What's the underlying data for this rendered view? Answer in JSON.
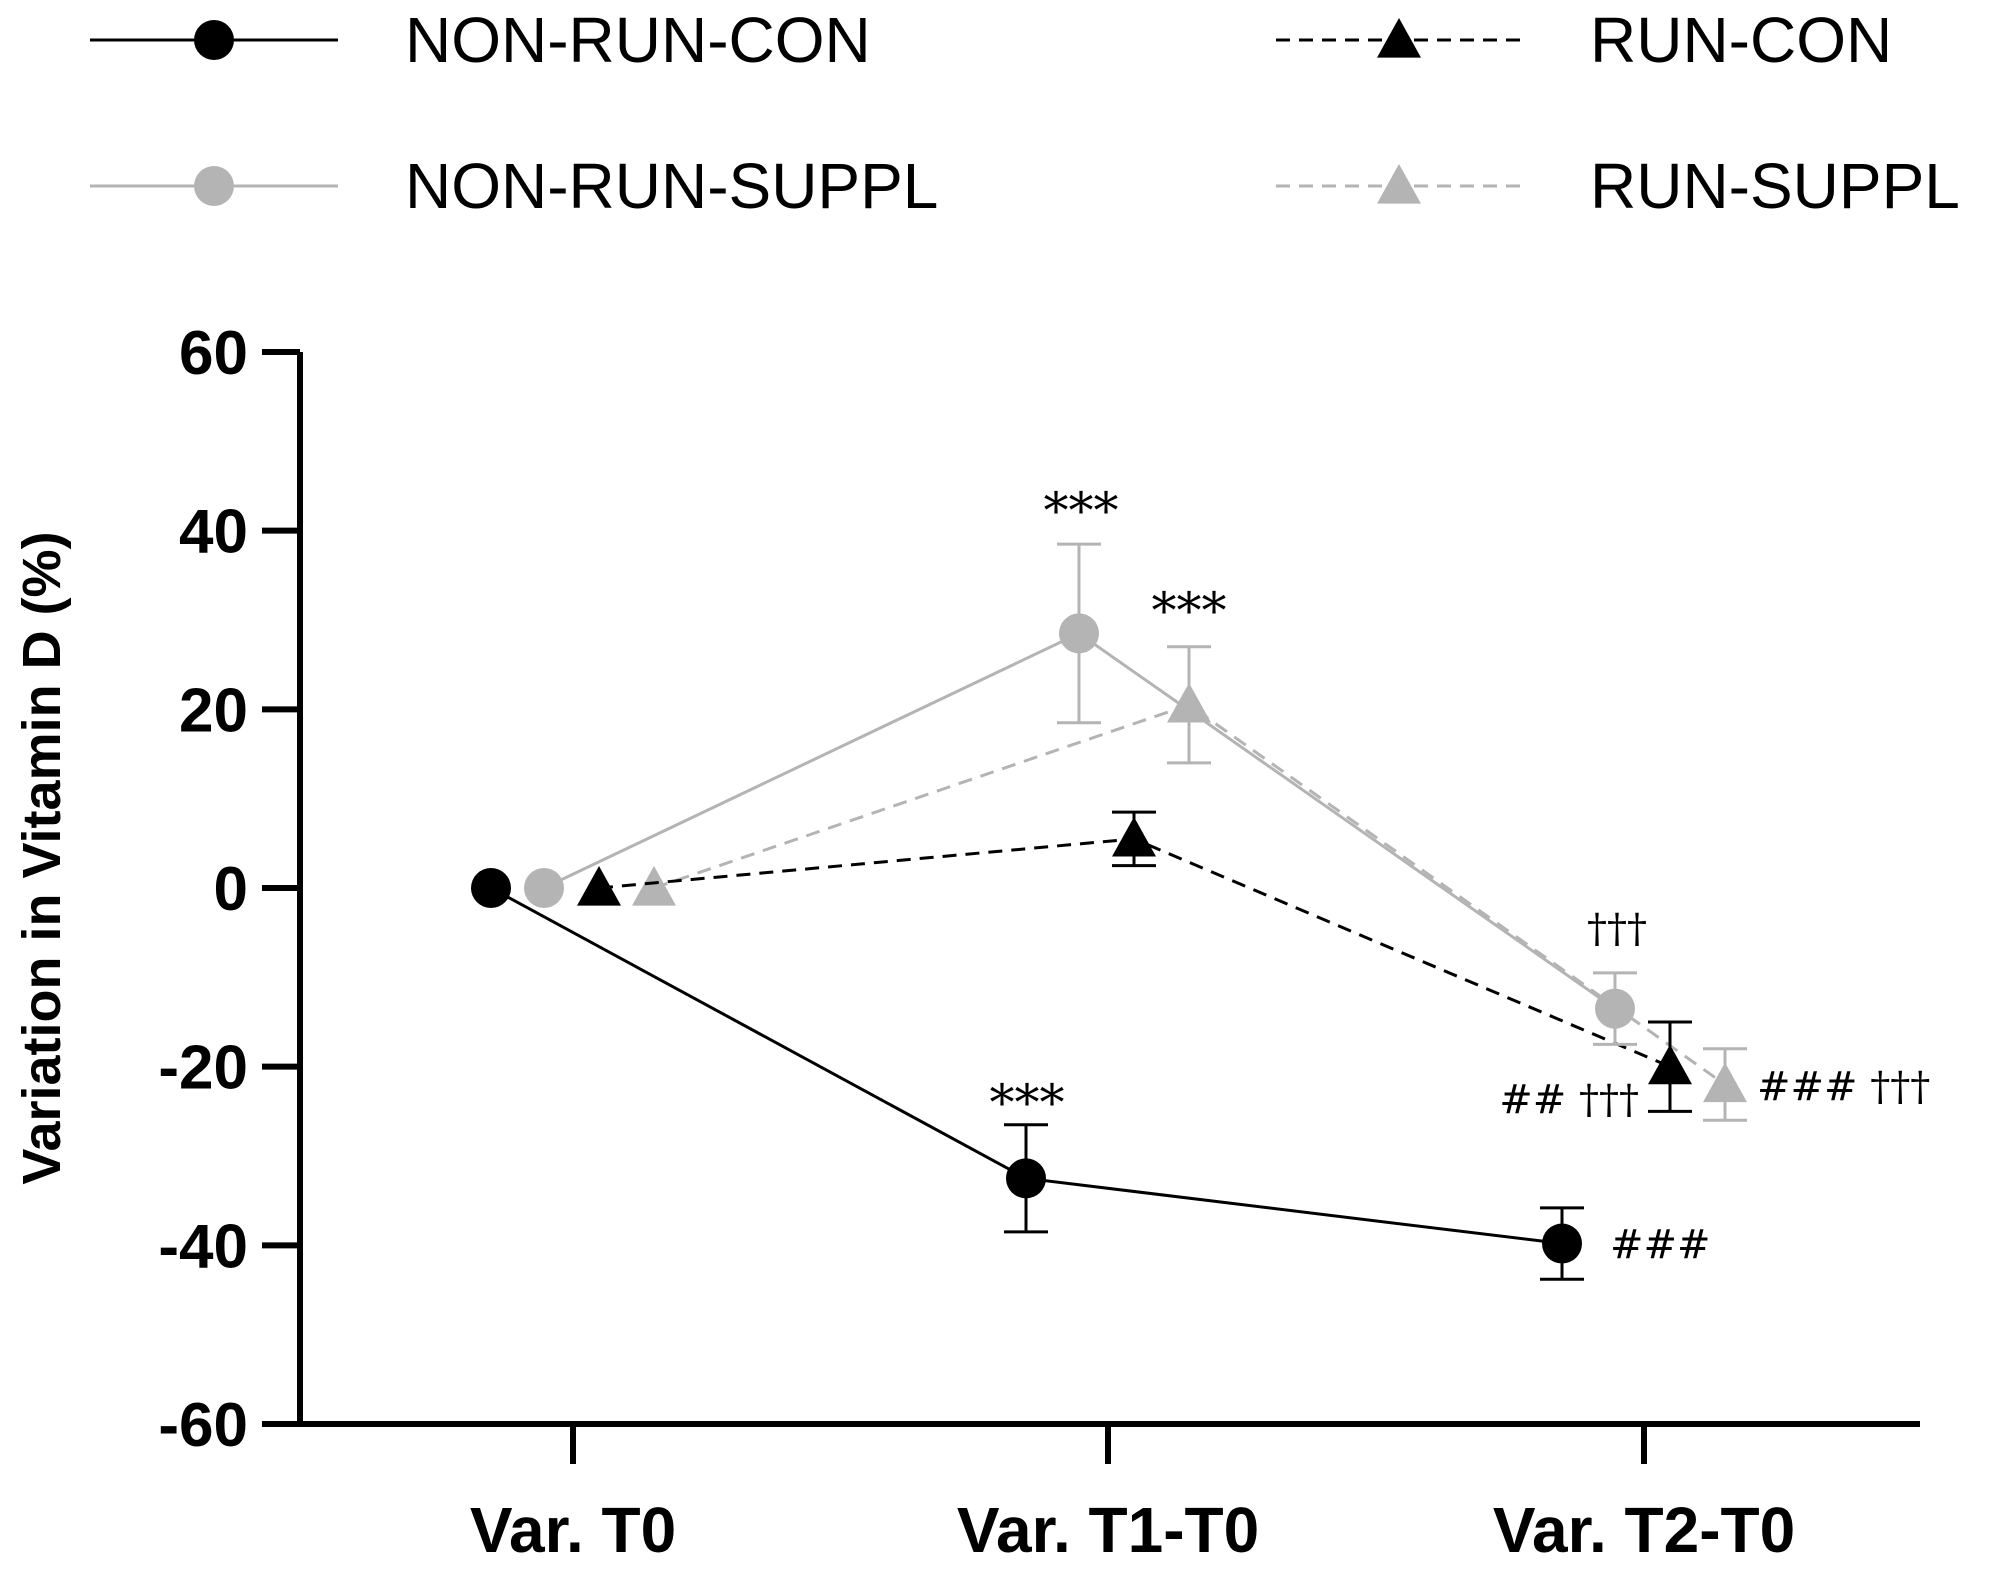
{
  "chart_data": {
    "type": "line",
    "title": "",
    "xlabel": "",
    "ylabel": "Variation in Vitamin D (%)",
    "ylim": [
      -60,
      60
    ],
    "yticks": [
      60,
      40,
      20,
      0,
      -20,
      -40,
      -60
    ],
    "ytick_labels": [
      "60",
      "40",
      "20",
      "0",
      "-20",
      "-40",
      "-60"
    ],
    "categories": [
      "Var. T0",
      "Var. T1-T0",
      "Var. T2-T0"
    ],
    "legend_position": "top",
    "series": [
      {
        "name": "NON-RUN-CON",
        "color": "#000000",
        "marker": "circle",
        "line_style": "solid",
        "values": [
          0,
          -32.5,
          -39.8
        ],
        "errors": [
          0,
          6,
          4
        ]
      },
      {
        "name": "NON-RUN-SUPPL",
        "color": "#b4b4b4",
        "marker": "circle",
        "line_style": "solid",
        "values": [
          0,
          28.5,
          -13.5
        ],
        "errors": [
          0,
          10,
          4
        ]
      },
      {
        "name": "RUN-CON",
        "color": "#000000",
        "marker": "triangle",
        "line_style": "dashed",
        "values": [
          0,
          5.5,
          -20
        ],
        "errors": [
          0,
          3,
          5
        ]
      },
      {
        "name": "RUN-SUPPL",
        "color": "#b4b4b4",
        "marker": "triangle",
        "line_style": "dashed",
        "values": [
          0,
          20.5,
          -22
        ],
        "errors": [
          0,
          6.5,
          4
        ]
      }
    ],
    "annotations": [
      {
        "text": "***",
        "category": "Var. T1-T0",
        "series": "NON-RUN-SUPPL"
      },
      {
        "text": "***",
        "category": "Var. T1-T0",
        "series": "RUN-SUPPL"
      },
      {
        "text": "***",
        "category": "Var. T1-T0",
        "series": "NON-RUN-CON"
      },
      {
        "text": "†††",
        "category": "Var. T2-T0",
        "series": "NON-RUN-SUPPL"
      },
      {
        "text": "## †††",
        "category": "Var. T2-T0",
        "series": "RUN-CON"
      },
      {
        "text": "### †††",
        "category": "Var. T2-T0",
        "series": "RUN-SUPPL"
      },
      {
        "text": "###",
        "category": "Var. T2-T0",
        "series": "NON-RUN-CON"
      }
    ]
  }
}
